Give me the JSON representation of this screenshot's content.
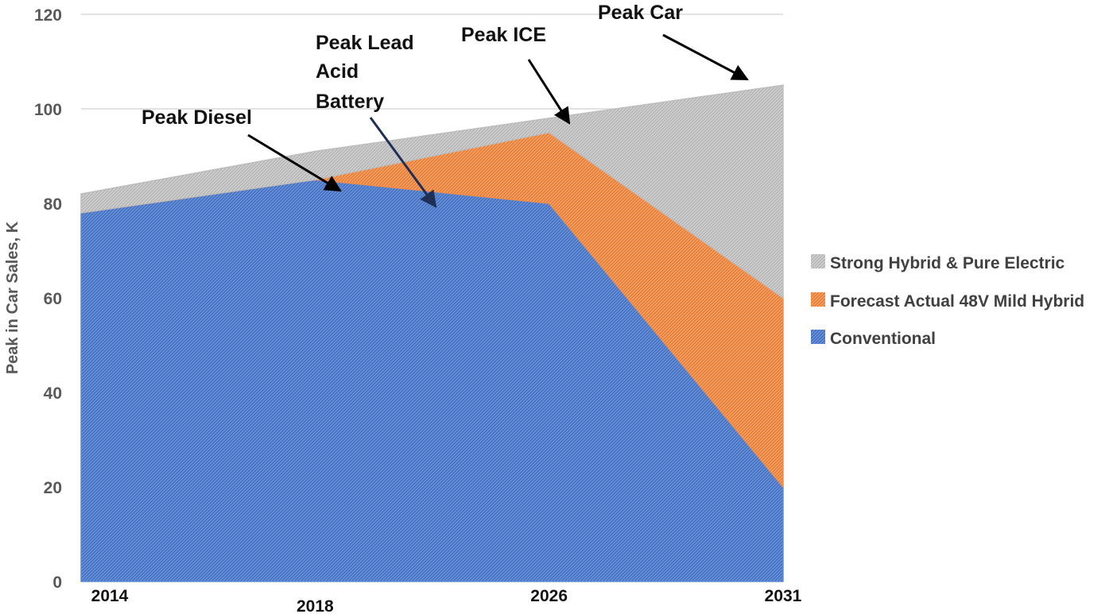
{
  "chart_data": {
    "type": "area",
    "stacked": true,
    "x": [
      "2014",
      "2018",
      "2026",
      "2031"
    ],
    "x_positions": [
      0,
      12,
      24,
      36
    ],
    "series": [
      {
        "name": "Conventional",
        "values": [
          78,
          85,
          80,
          20
        ],
        "color": "#4472C4"
      },
      {
        "name": "Forecast Actual 48V Mild Hybrid",
        "values": [
          0,
          0,
          15,
          40
        ],
        "color": "#ED7D31"
      },
      {
        "name": "Strong Hybrid & Pure Electric",
        "values": [
          4,
          6,
          3,
          45
        ],
        "color": "#A5A5A5"
      }
    ],
    "totals": [
      82,
      91,
      98,
      105
    ],
    "ylabel": "Peak in Car Sales, K",
    "xlabel": "",
    "ylim": [
      0,
      120
    ],
    "yticks": [
      0,
      20,
      40,
      60,
      80,
      100,
      120
    ],
    "grid": true,
    "legend_position": "right",
    "legend_order": [
      "Strong Hybrid & Pure Electric",
      "Forecast Actual 48V Mild Hybrid",
      "Conventional"
    ],
    "annotations": [
      {
        "label": "Peak Diesel",
        "lines": [
          "Peak Diesel"
        ]
      },
      {
        "label": "Peak Lead Acid Battery",
        "lines": [
          "Peak Lead",
          "Acid",
          "Battery"
        ]
      },
      {
        "label": "Peak ICE",
        "lines": [
          "Peak ICE"
        ]
      },
      {
        "label": "Peak Car",
        "lines": [
          "Peak Car"
        ]
      }
    ]
  }
}
